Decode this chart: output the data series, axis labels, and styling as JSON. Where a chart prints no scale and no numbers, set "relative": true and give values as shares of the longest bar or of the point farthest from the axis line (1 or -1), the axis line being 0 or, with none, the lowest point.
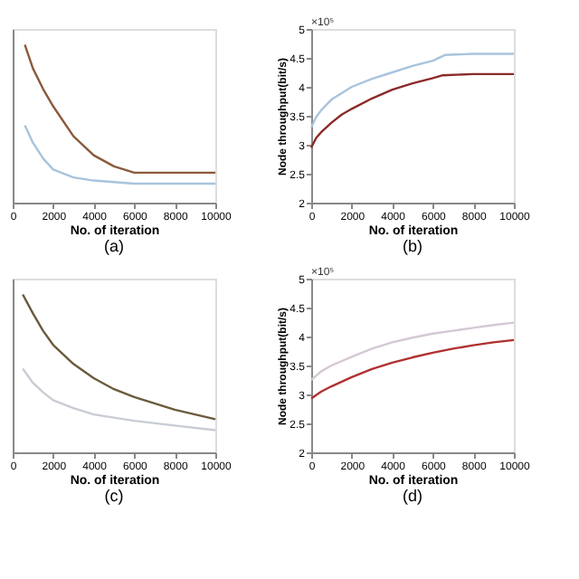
{
  "chart_data": [
    {
      "type": "line",
      "title": "(a)",
      "xlabel": "No. of iteration",
      "relative": true,
      "xlim": [
        0,
        10000
      ],
      "xticks": [
        0,
        2000,
        4000,
        6000,
        8000,
        10000
      ],
      "grid": false,
      "marker": "none",
      "line_style": "solid",
      "series": [
        {
          "color": "#8b5a3c",
          "x": [
            600,
            1000,
            1500,
            2000,
            3000,
            4000,
            5000,
            6000,
            8000,
            10000
          ],
          "values": [
            1,
            0.85,
            0.72,
            0.61,
            0.42,
            0.3,
            0.23,
            0.19,
            0.19,
            0.19
          ]
        },
        {
          "color": "#a8c4dc",
          "x": [
            600,
            1000,
            1500,
            2000,
            3000,
            4000,
            6000,
            8000,
            10000
          ],
          "values": [
            0.49,
            0.38,
            0.28,
            0.21,
            0.16,
            0.14,
            0.12,
            0.12,
            0.12
          ]
        }
      ]
    },
    {
      "type": "line",
      "title": "(b)",
      "xlabel": "No. of iteration",
      "ylabel": "Node throughput(bit/s)",
      "annotations": [
        "×10⁵"
      ],
      "xlim": [
        0,
        10000
      ],
      "xticks": [
        0,
        2000,
        4000,
        6000,
        8000,
        10000
      ],
      "ylim": [
        2,
        5
      ],
      "yticks": [
        2,
        2.5,
        3,
        3.5,
        4,
        4.5,
        5
      ],
      "grid": false,
      "marker": "none",
      "line_style": "solid",
      "series": [
        {
          "color": "#8b2a2a",
          "x": [
            0,
            250,
            500,
            1000,
            1500,
            2000,
            3000,
            4000,
            5000,
            6000,
            6500,
            8000,
            10000
          ],
          "values": [
            2.95,
            3.12,
            3.22,
            3.38,
            3.52,
            3.62,
            3.8,
            3.95,
            4.06,
            4.15,
            4.2,
            4.22,
            4.22
          ]
        },
        {
          "color": "#a8c4dc",
          "x": [
            0,
            250,
            500,
            1000,
            2000,
            3000,
            4000,
            5000,
            6000,
            6600,
            8000,
            10000
          ],
          "values": [
            3.3,
            3.48,
            3.6,
            3.78,
            4.0,
            4.14,
            4.25,
            4.36,
            4.45,
            4.55,
            4.57,
            4.57
          ]
        }
      ]
    },
    {
      "type": "line",
      "title": "(c)",
      "xlabel": "No. of iteration",
      "relative": true,
      "xlim": [
        0,
        10000
      ],
      "xticks": [
        0,
        2000,
        4000,
        6000,
        8000,
        10000
      ],
      "grid": false,
      "marker": "none",
      "line_style": "solid",
      "series": [
        {
          "color": "#6b5a3c",
          "x": [
            500,
            1000,
            1500,
            2000,
            3000,
            4000,
            5000,
            6000,
            7000,
            8000,
            9000,
            10000
          ],
          "values": [
            1,
            0.88,
            0.77,
            0.68,
            0.56,
            0.47,
            0.4,
            0.35,
            0.31,
            0.27,
            0.24,
            0.21
          ]
        },
        {
          "color": "#c8ccd4",
          "x": [
            500,
            1000,
            1500,
            2000,
            3000,
            4000,
            5000,
            6000,
            8000,
            10000
          ],
          "values": [
            0.53,
            0.44,
            0.38,
            0.33,
            0.28,
            0.24,
            0.22,
            0.2,
            0.17,
            0.14
          ]
        }
      ]
    },
    {
      "type": "line",
      "title": "(d)",
      "xlabel": "No. of iteration",
      "ylabel": "Node throughput(bit/s)",
      "annotations": [
        "×10⁵"
      ],
      "xlim": [
        0,
        10000
      ],
      "xticks": [
        0,
        2000,
        4000,
        6000,
        8000,
        10000
      ],
      "ylim": [
        2,
        5
      ],
      "yticks": [
        2,
        2.5,
        3,
        3.5,
        4,
        4.5,
        5
      ],
      "grid": false,
      "marker": "none",
      "line_style": "solid",
      "series": [
        {
          "color": "#b03030",
          "x": [
            0,
            500,
            1000,
            2000,
            3000,
            4000,
            5000,
            6000,
            7000,
            8000,
            9000,
            10000
          ],
          "values": [
            2.93,
            3.05,
            3.14,
            3.3,
            3.44,
            3.55,
            3.64,
            3.72,
            3.79,
            3.85,
            3.9,
            3.94
          ]
        },
        {
          "color": "#d4c8d4",
          "x": [
            0,
            500,
            1000,
            2000,
            3000,
            4000,
            5000,
            6000,
            7000,
            8000,
            9000,
            10000
          ],
          "values": [
            3.25,
            3.4,
            3.5,
            3.65,
            3.79,
            3.9,
            3.98,
            4.05,
            4.1,
            4.15,
            4.2,
            4.24
          ]
        }
      ]
    }
  ]
}
